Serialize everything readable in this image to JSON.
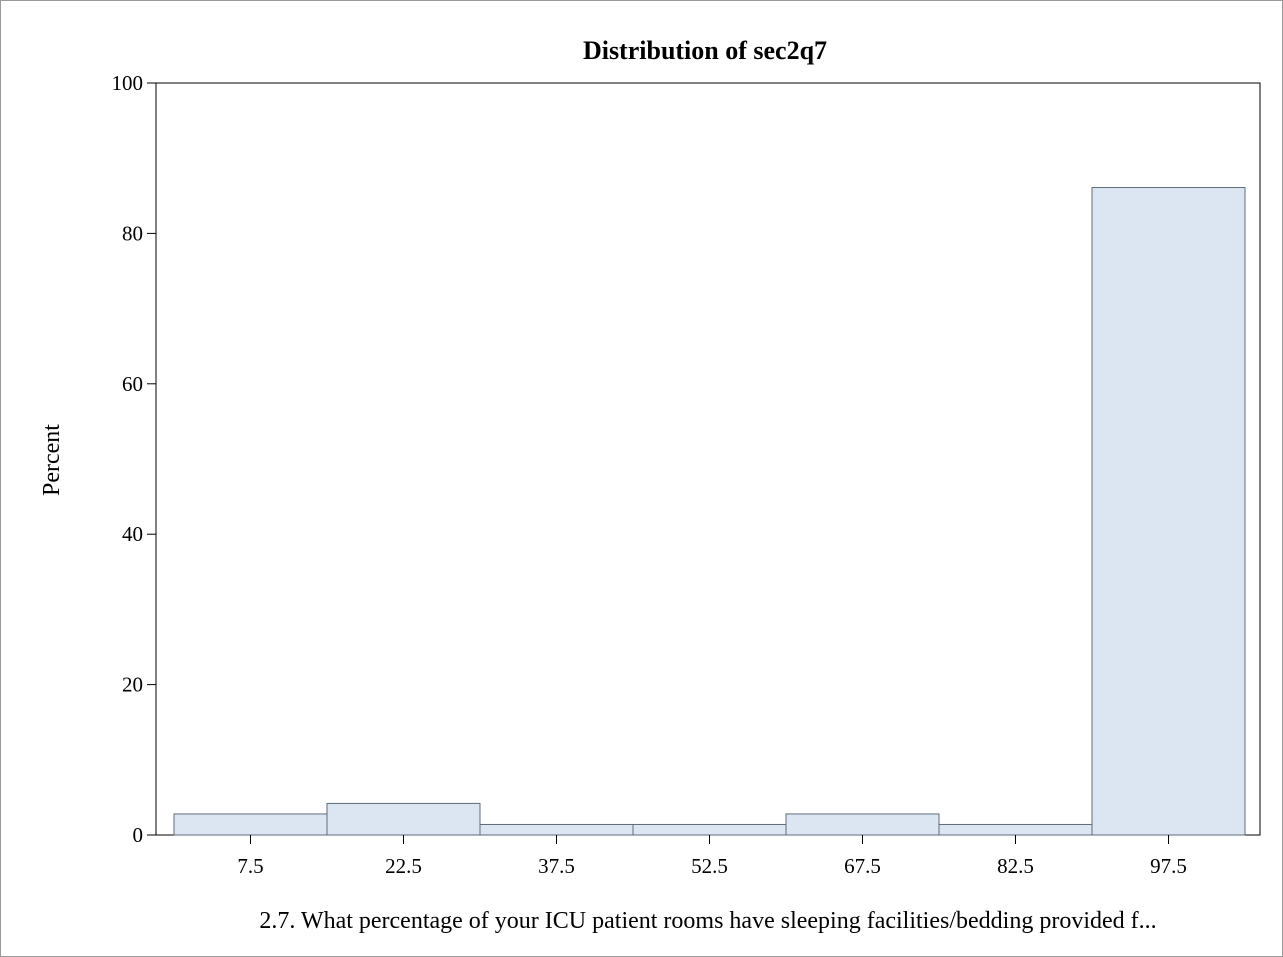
{
  "chart_data": {
    "type": "bar",
    "title": "Distribution of sec2q7",
    "xlabel": "2.7.  What percentage of your ICU patient rooms have sleeping facilities/bedding provided f...",
    "ylabel": "Percent",
    "categories": [
      "7.5",
      "22.5",
      "37.5",
      "52.5",
      "67.5",
      "82.5",
      "97.5"
    ],
    "values": [
      2.8,
      4.2,
      1.4,
      1.4,
      2.8,
      1.4,
      86.1
    ],
    "ylim": [
      0,
      100
    ],
    "yticks": [
      "0",
      "20",
      "40",
      "60",
      "80",
      "100"
    ],
    "grid": false,
    "legend": "none",
    "bar_fill": "#dce6f2",
    "bar_stroke": "#5f6b7a"
  }
}
